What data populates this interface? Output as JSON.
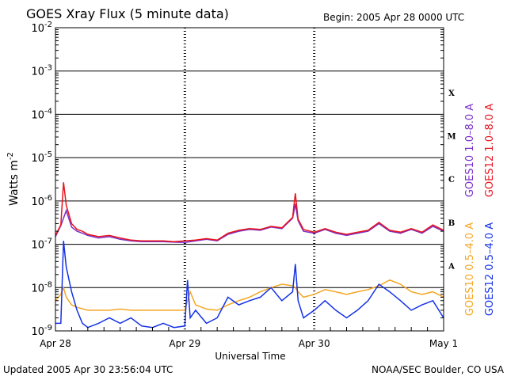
{
  "header": {
    "title": "GOES Xray Flux (5 minute data)",
    "begin": "Begin:  2005 Apr 28 0000 UTC"
  },
  "footer": {
    "updated": "Updated 2005 Apr 30 23:56:04 UTC",
    "credit": "NOAA/SEC Boulder, CO USA"
  },
  "colors": {
    "goes10_long": "#7a2ec8",
    "goes12_long": "#e8141e",
    "goes10_short": "#f5a623",
    "goes12_short": "#1432e6",
    "grid": "#000000"
  },
  "chart_data": {
    "type": "line",
    "title": "GOES Xray Flux (5 minute data)",
    "xlabel": "Universal Time",
    "ylabel": "Watts m",
    "ylabel_superscript": "-2",
    "y_scale": "log",
    "ylim": [
      1e-09,
      0.01
    ],
    "y_ticks": [
      {
        "base": "10",
        "exp": "-9",
        "value": 1e-09
      },
      {
        "base": "10",
        "exp": "-8",
        "value": 1e-08
      },
      {
        "base": "10",
        "exp": "-7",
        "value": 1e-07
      },
      {
        "base": "10",
        "exp": "-6",
        "value": 1e-06
      },
      {
        "base": "10",
        "exp": "-5",
        "value": 1e-05
      },
      {
        "base": "10",
        "exp": "-4",
        "value": 0.0001
      },
      {
        "base": "10",
        "exp": "-3",
        "value": 0.001
      },
      {
        "base": "10",
        "exp": "-2",
        "value": 0.01
      }
    ],
    "xlim_hours": [
      0,
      72
    ],
    "x_ticks": [
      {
        "label": "Apr 28",
        "hour": 0
      },
      {
        "label": "Apr 29",
        "hour": 24
      },
      {
        "label": "Apr 30",
        "hour": 48
      },
      {
        "label": "May 1",
        "hour": 72
      }
    ],
    "flare_classes": [
      {
        "label": "A",
        "value": 3.2e-08
      },
      {
        "label": "B",
        "value": 3.2e-07
      },
      {
        "label": "C",
        "value": 3.2e-06
      },
      {
        "label": "M",
        "value": 3.2e-05
      },
      {
        "label": "X",
        "value": 0.00032
      }
    ],
    "grid": true,
    "legend_placement": "right",
    "series": [
      {
        "name": "GOES10 1.0–8.0 A",
        "color": "#7a2ec8",
        "x": [
          0,
          1,
          2,
          3,
          4,
          5,
          6,
          8,
          10,
          12,
          14,
          16,
          18,
          20,
          22,
          24,
          26,
          28,
          30,
          32,
          34,
          36,
          38,
          40,
          42,
          44,
          44.5,
          45,
          46,
          48,
          50,
          52,
          54,
          56,
          58,
          60,
          62,
          64,
          66,
          68,
          70,
          72
        ],
        "y": [
          1.5e-07,
          2.7e-07,
          6e-07,
          2.5e-07,
          2e-07,
          1.8e-07,
          1.6e-07,
          1.4e-07,
          1.5e-07,
          1.3e-07,
          1.2e-07,
          1.15e-07,
          1.15e-07,
          1.15e-07,
          1.12e-07,
          1.1e-07,
          1.2e-07,
          1.3e-07,
          1.2e-07,
          1.7e-07,
          2e-07,
          2.2e-07,
          2.1e-07,
          2.5e-07,
          2.3e-07,
          4e-07,
          8.5e-07,
          3.5e-07,
          2e-07,
          1.8e-07,
          2.2e-07,
          1.8e-07,
          1.6e-07,
          1.8e-07,
          2e-07,
          3e-07,
          2e-07,
          1.8e-07,
          2.2e-07,
          1.8e-07,
          2.6e-07,
          2e-07
        ]
      },
      {
        "name": "GOES12 1.0–8.0 A",
        "color": "#e8141e",
        "x": [
          0,
          1,
          1.5,
          2,
          3,
          4,
          5,
          6,
          8,
          10,
          12,
          14,
          16,
          18,
          20,
          22,
          24,
          26,
          28,
          30,
          32,
          34,
          36,
          38,
          40,
          42,
          44,
          44.5,
          45,
          46,
          48,
          50,
          52,
          54,
          56,
          58,
          60,
          62,
          64,
          66,
          68,
          70,
          72
        ],
        "y": [
          1.6e-07,
          2.8e-07,
          2.7e-06,
          8e-07,
          3e-07,
          2.2e-07,
          2e-07,
          1.7e-07,
          1.5e-07,
          1.6e-07,
          1.4e-07,
          1.25e-07,
          1.2e-07,
          1.2e-07,
          1.2e-07,
          1.15e-07,
          1.2e-07,
          1.25e-07,
          1.35e-07,
          1.25e-07,
          1.8e-07,
          2.1e-07,
          2.3e-07,
          2.2e-07,
          2.6e-07,
          2.4e-07,
          4.2e-07,
          1.5e-06,
          3.8e-07,
          2.2e-07,
          1.9e-07,
          2.3e-07,
          1.9e-07,
          1.7e-07,
          1.9e-07,
          2.1e-07,
          3.2e-07,
          2.1e-07,
          1.9e-07,
          2.3e-07,
          1.9e-07,
          2.8e-07,
          2.1e-07
        ]
      },
      {
        "name": "GOES10 0.5–4.0 A",
        "color": "#f5a623",
        "x": [
          0,
          1,
          1.5,
          2,
          3,
          4,
          6,
          8,
          10,
          12,
          14,
          16,
          18,
          20,
          22,
          24,
          25,
          26,
          28,
          30,
          32,
          34,
          36,
          38,
          40,
          42,
          44,
          44.5,
          45,
          46,
          48,
          50,
          52,
          54,
          56,
          58,
          60,
          62,
          64,
          66,
          68,
          70,
          72
        ],
        "y": [
          5e-09,
          7e-09,
          1e-08,
          6e-09,
          4e-09,
          3.5e-09,
          3e-09,
          3e-09,
          3e-09,
          3.2e-09,
          3e-09,
          3e-09,
          3e-09,
          3e-09,
          3e-09,
          3e-09,
          8e-09,
          4e-09,
          3.2e-09,
          3e-09,
          4e-09,
          5e-09,
          6e-09,
          8e-09,
          1e-08,
          1.2e-08,
          1.1e-08,
          1e-08,
          8e-09,
          6e-09,
          7e-09,
          9e-09,
          8e-09,
          7e-09,
          8e-09,
          9e-09,
          1.1e-08,
          1.5e-08,
          1.2e-08,
          8e-09,
          7e-09,
          8e-09,
          6e-09
        ]
      },
      {
        "name": "GOES12 0.5–4.0 A",
        "color": "#1432e6",
        "x": [
          0,
          1,
          1.5,
          2,
          3,
          4,
          5,
          6,
          8,
          10,
          12,
          14,
          16,
          18,
          20,
          22,
          24,
          24.5,
          25,
          26,
          28,
          30,
          32,
          34,
          36,
          38,
          40,
          42,
          44,
          44.5,
          45,
          46,
          48,
          50,
          52,
          54,
          56,
          58,
          60,
          62,
          64,
          66,
          68,
          70,
          72
        ],
        "y": [
          1.5e-09,
          1.5e-09,
          1.2e-07,
          3e-08,
          8e-09,
          3e-09,
          1.5e-09,
          1.2e-09,
          1.5e-09,
          2e-09,
          1.5e-09,
          2e-09,
          1.3e-09,
          1.2e-09,
          1.5e-09,
          1.2e-09,
          1.3e-09,
          1.5e-08,
          2e-09,
          3e-09,
          1.5e-09,
          2e-09,
          6e-09,
          4e-09,
          5e-09,
          6e-09,
          1e-08,
          5e-09,
          8e-09,
          3.5e-08,
          5e-09,
          2e-09,
          3e-09,
          5e-09,
          3e-09,
          2e-09,
          3e-09,
          5e-09,
          1.2e-08,
          8e-09,
          5e-09,
          3e-09,
          4e-09,
          5e-09,
          2e-09
        ]
      }
    ]
  }
}
